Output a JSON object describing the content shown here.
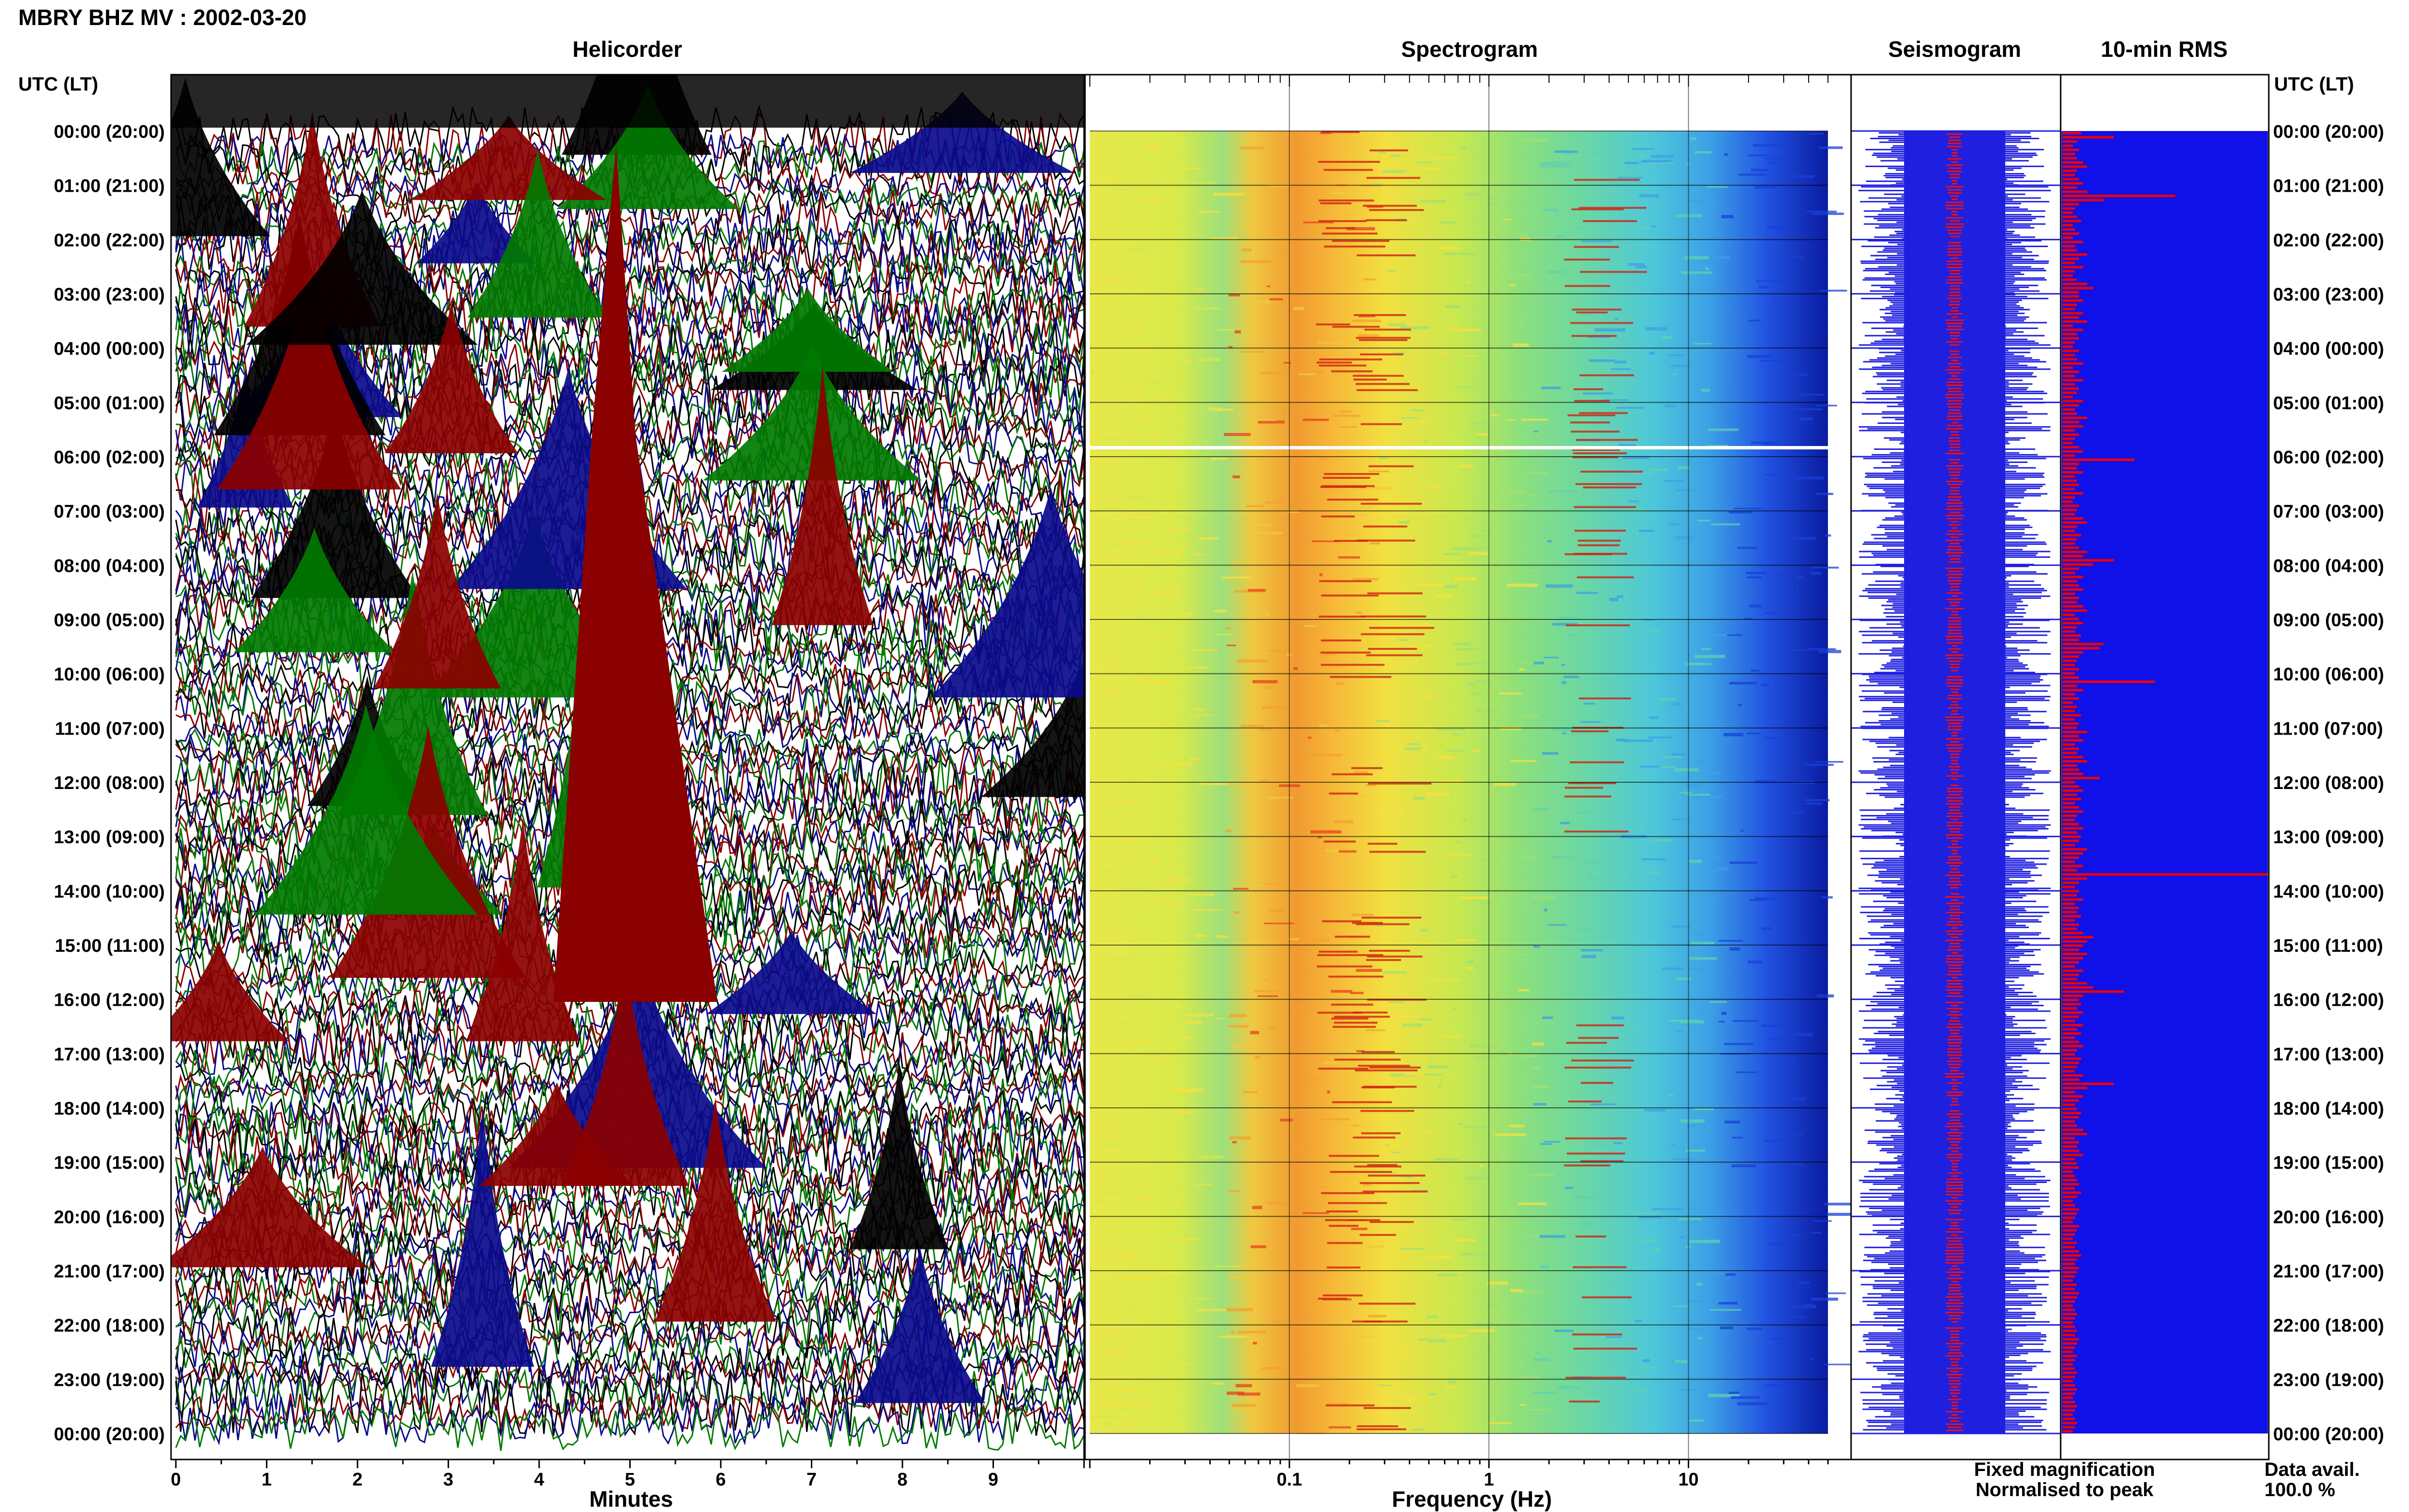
{
  "header": {
    "title": "MBRY BHZ MV : 2002-03-20"
  },
  "panels": {
    "helicorder": "Helicorder",
    "spectrogram": "Spectrogram",
    "seismogram": "Seismogram",
    "rms": "10-min RMS"
  },
  "axes": {
    "time_label_left": "UTC (LT)",
    "time_label_right": "UTC (LT)",
    "helicorder_xlabel": "Minutes",
    "spectrogram_xlabel": "Frequency (Hz)"
  },
  "legend": {
    "fixed": "Fixed magnification",
    "normalised": "Normalised to peak",
    "data_avail_label": "Data avail.",
    "data_avail_value": "100.0 %"
  },
  "colors": {
    "fixed": "#1f1fe0",
    "normalised": "#ee1111",
    "trace_black": "#000000",
    "trace_red": "#8b0000",
    "trace_blue": "#0a0a8c",
    "trace_green": "#007a00",
    "rms_background": "#1010e8",
    "rms_bar": "#ee0000"
  },
  "chart_data": [
    {
      "type": "line",
      "name": "helicorder",
      "title": "Helicorder",
      "xlabel": "Minutes",
      "xlim": [
        0,
        10
      ],
      "xticks": [
        0,
        1,
        2,
        3,
        4,
        5,
        6,
        7,
        8,
        9
      ],
      "ylim": [
        0,
        24
      ],
      "row_minutes": 10,
      "trace_color_cycle": [
        "black",
        "red",
        "blue",
        "green"
      ]
    },
    {
      "type": "heatmap",
      "name": "spectrogram",
      "title": "Spectrogram",
      "xlabel": "Frequency (Hz)",
      "xscale": "log",
      "xlim": [
        0.01,
        50
      ],
      "xticks": [
        0.1,
        1,
        10
      ],
      "xtick_labels": [
        "0.1",
        "1",
        "10"
      ],
      "ylim": [
        0,
        24
      ],
      "peak_bands_hz": [
        0.2,
        0.3,
        3.5
      ],
      "gap_hour": 6.0
    },
    {
      "type": "line",
      "name": "seismogram",
      "title": "Seismogram",
      "legend": [
        "Fixed magnification",
        "Normalised to peak"
      ]
    },
    {
      "type": "bar",
      "name": "rms",
      "title": "10-min RMS",
      "orientation": "horizontal",
      "xlim": [
        0,
        1
      ],
      "segment_minutes": 10,
      "values": [
        0.09,
        0.25,
        0.07,
        0.05,
        0.08,
        0.06,
        0.07,
        0.1,
        0.12,
        0.07,
        0.06,
        0.08,
        0.1,
        0.07,
        0.12,
        0.55,
        0.2,
        0.08,
        0.06,
        0.05,
        0.07,
        0.09,
        0.05,
        0.06,
        0.08,
        0.05,
        0.1,
        0.06,
        0.07,
        0.12,
        0.08,
        0.06,
        0.1,
        0.06,
        0.05,
        0.07,
        0.12,
        0.15,
        0.08,
        0.08,
        0.1,
        0.07,
        0.06,
        0.1,
        0.08,
        0.12,
        0.05,
        0.1,
        0.07,
        0.08,
        0.06,
        0.05,
        0.08,
        0.06,
        0.07,
        0.1,
        0.05,
        0.08,
        0.06,
        0.1,
        0.06,
        0.08,
        0.07,
        0.05,
        0.1,
        0.08,
        0.06,
        0.07,
        0.12,
        0.08,
        0.1,
        0.06,
        0.08,
        0.06,
        0.05,
        0.08,
        0.1,
        0.06,
        0.35,
        0.08,
        0.07,
        0.1,
        0.06,
        0.07,
        0.08,
        0.06,
        0.1,
        0.06,
        0.05,
        0.08,
        0.07,
        0.06,
        0.1,
        0.12,
        0.07,
        0.06,
        0.09,
        0.07,
        0.06,
        0.08,
        0.12,
        0.1,
        0.25,
        0.15,
        0.08,
        0.06,
        0.1,
        0.07,
        0.08,
        0.1,
        0.06,
        0.08,
        0.07,
        0.1,
        0.12,
        0.06,
        0.08,
        0.1,
        0.07,
        0.06,
        0.09,
        0.08,
        0.2,
        0.18,
        0.1,
        0.08,
        0.07,
        0.06,
        0.08,
        0.06,
        0.08,
        0.45,
        0.07,
        0.1,
        0.06,
        0.08,
        0.05,
        0.07,
        0.06,
        0.09,
        0.06,
        0.08,
        0.07,
        0.12,
        0.08,
        0.1,
        0.06,
        0.08,
        0.07,
        0.1,
        0.12,
        0.07,
        0.08,
        0.1,
        0.18,
        0.06,
        0.08,
        0.1,
        0.07,
        0.09,
        0.06,
        0.08,
        0.1,
        0.07,
        0.06,
        0.08,
        0.1,
        0.07,
        0.09,
        0.08,
        0.06,
        0.12,
        0.1,
        0.08,
        0.06,
        0.1,
        0.07,
        1.0,
        0.12,
        0.08,
        0.06,
        0.08,
        0.07,
        0.1,
        0.06,
        0.08,
        0.07,
        0.09,
        0.06,
        0.08,
        0.07,
        0.1,
        0.15,
        0.12,
        0.1,
        0.08,
        0.12,
        0.1,
        0.08,
        0.06,
        0.1,
        0.08,
        0.07,
        0.12,
        0.15,
        0.3,
        0.1,
        0.08,
        0.09,
        0.07,
        0.1,
        0.08,
        0.06,
        0.1,
        0.07,
        0.09,
        0.06,
        0.08,
        0.1,
        0.07,
        0.06,
        0.09,
        0.08,
        0.07,
        0.06,
        0.1,
        0.08,
        0.25,
        0.12,
        0.06,
        0.1,
        0.08,
        0.06,
        0.07,
        0.09,
        0.08,
        0.06,
        0.07,
        0.1,
        0.12,
        0.06,
        0.08,
        0.07,
        0.08,
        0.1,
        0.06,
        0.07,
        0.08,
        0.05,
        0.06,
        0.07,
        0.08,
        0.06,
        0.09,
        0.07,
        0.05,
        0.06,
        0.08,
        0.07,
        0.06,
        0.05,
        0.08,
        0.07,
        0.06,
        0.05,
        0.07,
        0.06,
        0.08,
        0.09,
        0.07,
        0.06,
        0.08,
        0.07,
        0.06,
        0.05,
        0.07,
        0.06,
        0.08,
        0.07,
        0.06,
        0.05,
        0.06,
        0.07,
        0.06,
        0.05,
        0.06,
        0.07,
        0.06,
        0.08,
        0.07,
        0.06,
        0.05,
        0.07,
        0.06,
        0.05,
        0.06,
        0.07,
        0.06,
        0.05,
        0.06,
        0.07,
        0.06,
        0.05,
        0.06,
        0.07,
        0.06,
        0.05,
        0.06,
        0.07,
        0.06,
        0.05
      ]
    }
  ],
  "time_labels": [
    "00:00 (20:00)",
    "01:00 (21:00)",
    "02:00 (22:00)",
    "03:00 (23:00)",
    "04:00 (00:00)",
    "05:00 (01:00)",
    "06:00 (02:00)",
    "07:00 (03:00)",
    "08:00 (04:00)",
    "09:00 (05:00)",
    "10:00 (06:00)",
    "11:00 (07:00)",
    "12:00 (08:00)",
    "13:00 (09:00)",
    "14:00 (10:00)",
    "15:00 (11:00)",
    "16:00 (12:00)",
    "17:00 (13:00)",
    "18:00 (14:00)",
    "19:00 (15:00)",
    "20:00 (16:00)",
    "21:00 (17:00)",
    "22:00 (18:00)",
    "23:00 (19:00)",
    "00:00 (20:00)"
  ]
}
